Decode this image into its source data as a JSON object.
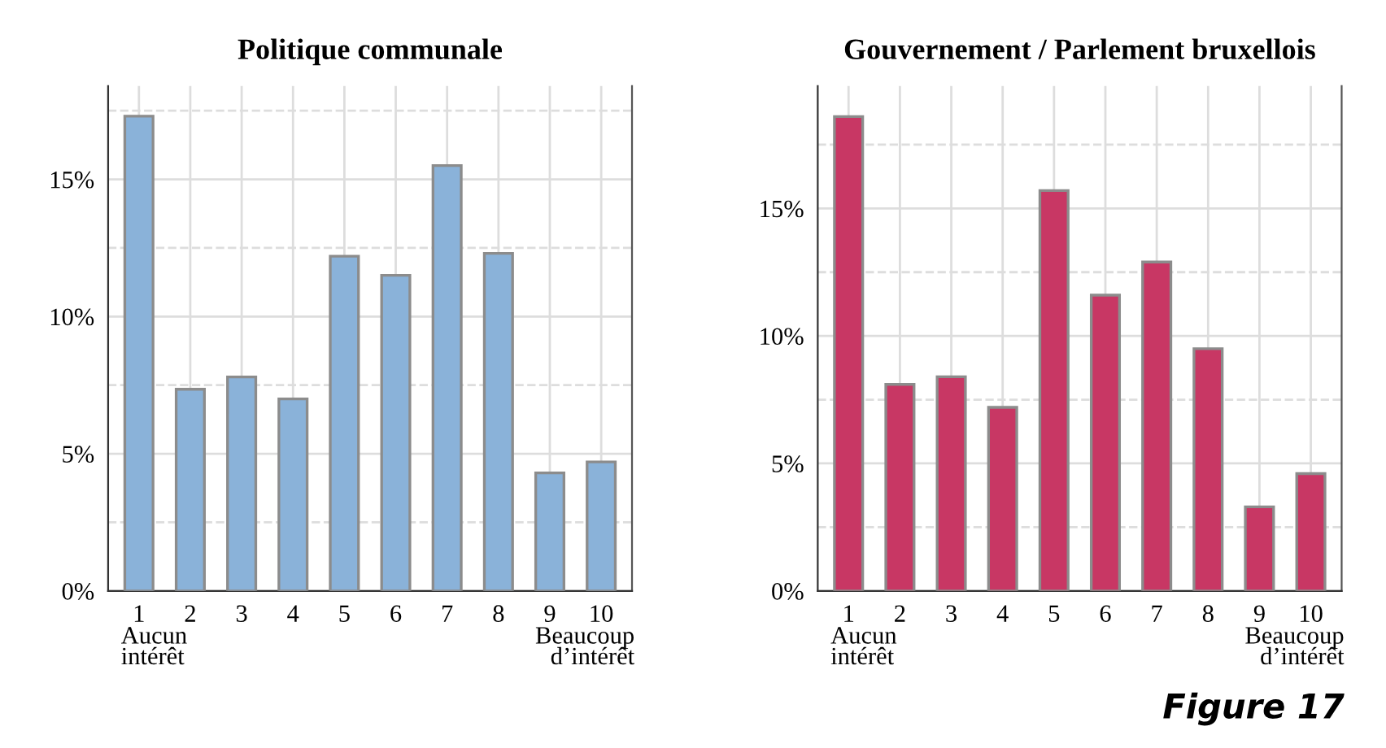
{
  "chart_data": [
    {
      "type": "bar",
      "title": "Politique communale",
      "categories": [
        "1",
        "2",
        "3",
        "4",
        "5",
        "6",
        "7",
        "8",
        "9",
        "10"
      ],
      "values": [
        17.3,
        7.35,
        7.8,
        7.0,
        12.2,
        11.5,
        15.5,
        12.3,
        4.3,
        4.7
      ],
      "color": "#8ab2d9",
      "ylim": [
        0,
        18.4
      ],
      "yticks": [
        {
          "value": 0,
          "label": "0%"
        },
        {
          "value": 2.5,
          "label": null
        },
        {
          "value": 5,
          "label": "5%"
        },
        {
          "value": 7.5,
          "label": null
        },
        {
          "value": 10,
          "label": "10%"
        },
        {
          "value": 12.5,
          "label": null
        },
        {
          "value": 15,
          "label": "15%"
        },
        {
          "value": 17.5,
          "label": null
        }
      ],
      "grid": true,
      "annotations": [
        "Aucun\nintérêt",
        "Beaucoup\nd’intérêt"
      ]
    },
    {
      "type": "bar",
      "title": "Gouvernement / Parlement bruxellois",
      "categories": [
        "1",
        "2",
        "3",
        "4",
        "5",
        "6",
        "7",
        "8",
        "9",
        "10"
      ],
      "values": [
        18.6,
        8.1,
        8.4,
        7.2,
        15.7,
        11.6,
        12.9,
        9.5,
        3.3,
        4.6
      ],
      "color": "#c83764",
      "ylim": [
        0,
        19.8
      ],
      "yticks": [
        {
          "value": 0,
          "label": "0%"
        },
        {
          "value": 2.5,
          "label": null
        },
        {
          "value": 5,
          "label": "5%"
        },
        {
          "value": 7.5,
          "label": null
        },
        {
          "value": 10,
          "label": "10%"
        },
        {
          "value": 12.5,
          "label": null
        },
        {
          "value": 15,
          "label": "15%"
        },
        {
          "value": 17.5,
          "label": null
        }
      ],
      "grid": true,
      "annotations": [
        "Aucun\nintérêt",
        "Beaucoup\nd’intérêt",
        "Figure 17"
      ]
    }
  ]
}
